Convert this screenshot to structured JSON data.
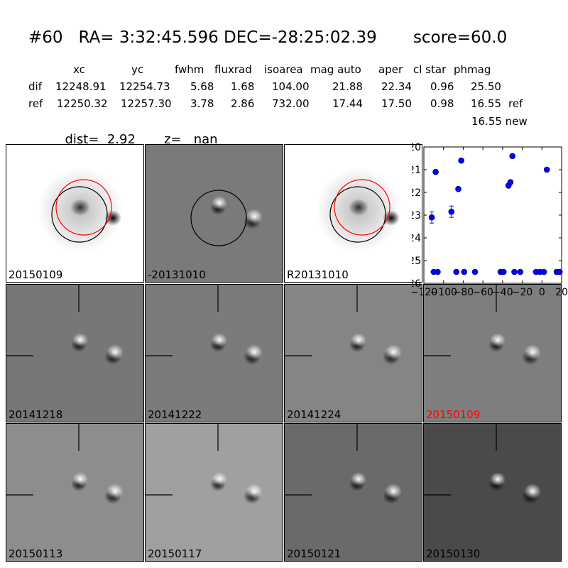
{
  "header": {
    "title": "#60   RA= 3:32:45.596 DEC=-28:25:02.39       score=60.0",
    "columns": [
      "xc",
      "yc",
      "fwhm",
      "fluxrad",
      "isoarea",
      "mag auto",
      "aper",
      "cl star",
      "phmag"
    ],
    "rows": [
      {
        "label": "dif",
        "values": [
          "12248.91",
          "12254.73",
          "5.68",
          "1.68",
          "104.00",
          "21.88",
          "22.34",
          "0.96",
          "25.50"
        ],
        "suffix": ""
      },
      {
        "label": "ref",
        "values": [
          "12250.32",
          "12257.30",
          "3.78",
          "2.86",
          "732.00",
          "17.44",
          "17.50",
          "0.98",
          "16.55"
        ],
        "suffix": "ref"
      }
    ],
    "extra_line": "16.55 new",
    "dist_label": "dist=",
    "dist_value": "2.92",
    "z_label": "z=",
    "z_value": "nan"
  },
  "panels": [
    {
      "label": "20150109",
      "bg": "#ffffff",
      "type": "stamp",
      "red": false
    },
    {
      "label": "-20131010",
      "bg": "#7a7a7a",
      "type": "diff",
      "red": false
    },
    {
      "label": "R20131010",
      "bg": "#ffffff",
      "type": "stamp",
      "red": false
    },
    {
      "label": "20141218",
      "bg": "#777777",
      "type": "cut",
      "red": false
    },
    {
      "label": "20141222",
      "bg": "#7b7b7b",
      "type": "cut",
      "red": false
    },
    {
      "label": "20141224",
      "bg": "#858585",
      "type": "cut",
      "red": false
    },
    {
      "label": "20150109",
      "bg": "#7e7e7e",
      "type": "cut",
      "red": true
    },
    {
      "label": "20150113",
      "bg": "#8d8d8d",
      "type": "cut",
      "red": false
    },
    {
      "label": "20150117",
      "bg": "#a0a0a0",
      "type": "cut",
      "red": false
    },
    {
      "label": "20150121",
      "bg": "#6a6a6a",
      "type": "cut",
      "red": false
    },
    {
      "label": "20150130",
      "bg": "#4a4a4a",
      "type": "cut",
      "red": false
    }
  ],
  "colors": {
    "marker": "#0000ff",
    "circle_red": "#ff0000",
    "circle_black": "#000000",
    "label_red": "#ff0000"
  },
  "chart_data": {
    "type": "scatter",
    "title": "",
    "xlabel": "",
    "ylabel": "",
    "xlim": [
      -120,
      20
    ],
    "ylim": [
      26,
      20
    ],
    "y_inverted": true,
    "xticks": [
      -120,
      -100,
      -80,
      -60,
      -40,
      -20,
      0,
      20
    ],
    "xtick_labels": [
      "−120",
      "−100",
      "−80",
      "−60",
      "−40",
      "−20",
      "0",
      "20"
    ],
    "yticks": [
      20,
      21,
      22,
      23,
      24,
      25,
      26
    ],
    "series": [
      {
        "points": [
          {
            "x": -112,
            "y": 23.1,
            "err": 0.25
          },
          {
            "x": -110,
            "y": 25.5
          },
          {
            "x": -108,
            "y": 21.1
          },
          {
            "x": -106,
            "y": 25.5
          },
          {
            "x": -92,
            "y": 22.85,
            "err": 0.25
          },
          {
            "x": -87,
            "y": 25.5
          },
          {
            "x": -85,
            "y": 21.85
          },
          {
            "x": -82,
            "y": 20.6
          },
          {
            "x": -79,
            "y": 25.5
          },
          {
            "x": -68,
            "y": 25.5
          },
          {
            "x": -42,
            "y": 25.5
          },
          {
            "x": -39,
            "y": 25.5
          },
          {
            "x": -34,
            "y": 21.7
          },
          {
            "x": -32,
            "y": 21.55
          },
          {
            "x": -30,
            "y": 20.4
          },
          {
            "x": -28,
            "y": 25.5
          },
          {
            "x": -22,
            "y": 25.5
          },
          {
            "x": -6,
            "y": 25.5
          },
          {
            "x": -2,
            "y": 25.5
          },
          {
            "x": 2,
            "y": 25.5
          },
          {
            "x": 5,
            "y": 21.0
          },
          {
            "x": 15,
            "y": 25.5
          },
          {
            "x": 18,
            "y": 25.5
          }
        ]
      }
    ]
  }
}
